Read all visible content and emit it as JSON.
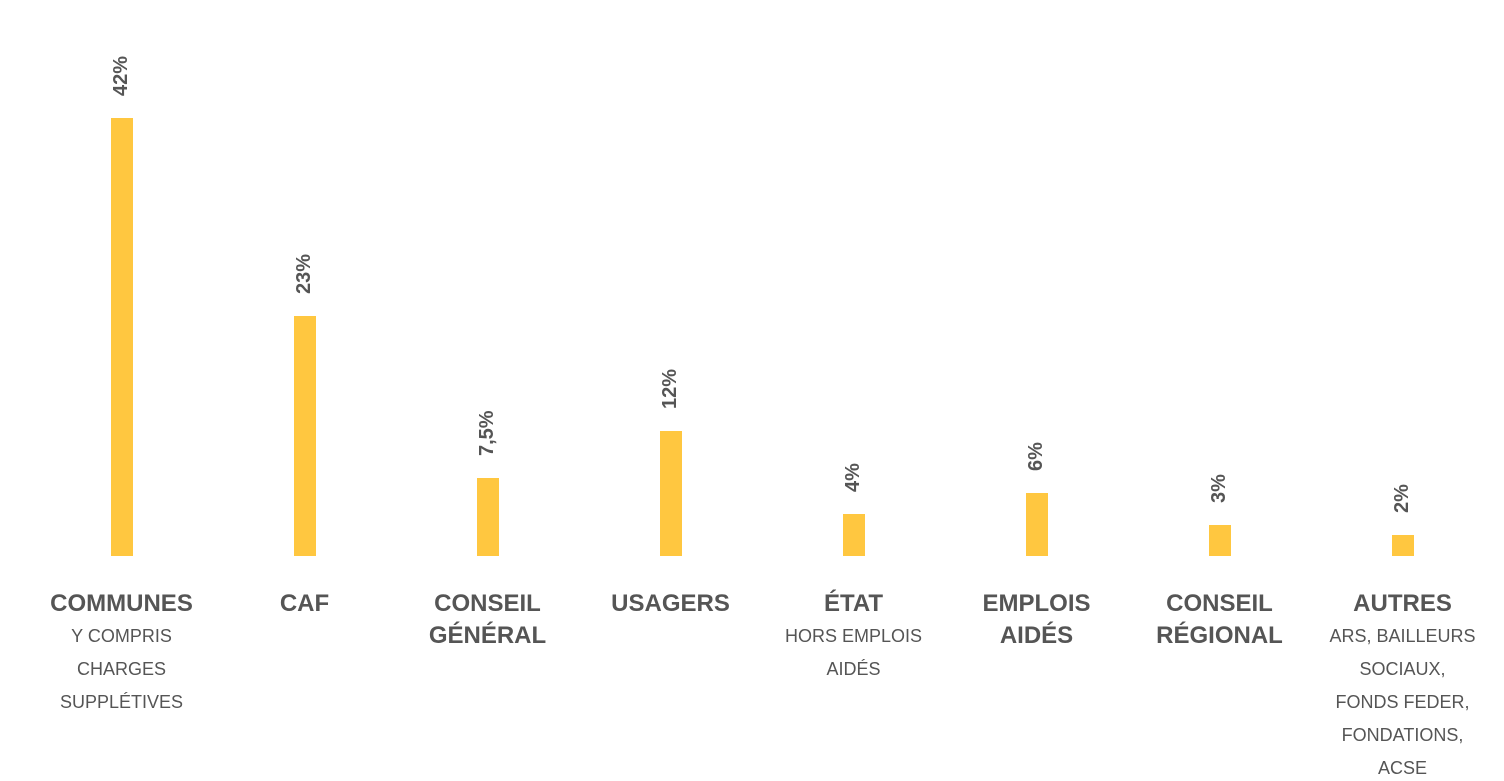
{
  "chart_data": {
    "type": "bar",
    "categories": [
      "COMMUNES",
      "CAF",
      "CONSEIL\nGÉNÉRAL",
      "USAGERS",
      "ÉTAT",
      "EMPLOIS\nAIDÉS",
      "CONSEIL\nRÉGIONAL",
      "AUTRES"
    ],
    "sublabels": [
      "Y COMPRIS\nCHARGES SUPPLÉTIVES",
      null,
      null,
      null,
      "HORS EMPLOIS\nAIDÉS",
      null,
      null,
      "ARS, BAILLEURS\nSOCIAUX,\nFONDS FEDER,\nFONDATIONS,\nACSE"
    ],
    "values": [
      42,
      23,
      7.5,
      12,
      4,
      6,
      3,
      2
    ],
    "value_labels": [
      "42%",
      "23%",
      "7,5%",
      "12%",
      "4%",
      "6%",
      "3%",
      "2%"
    ],
    "color": "#ffc740",
    "ylim": [
      0,
      45
    ]
  }
}
